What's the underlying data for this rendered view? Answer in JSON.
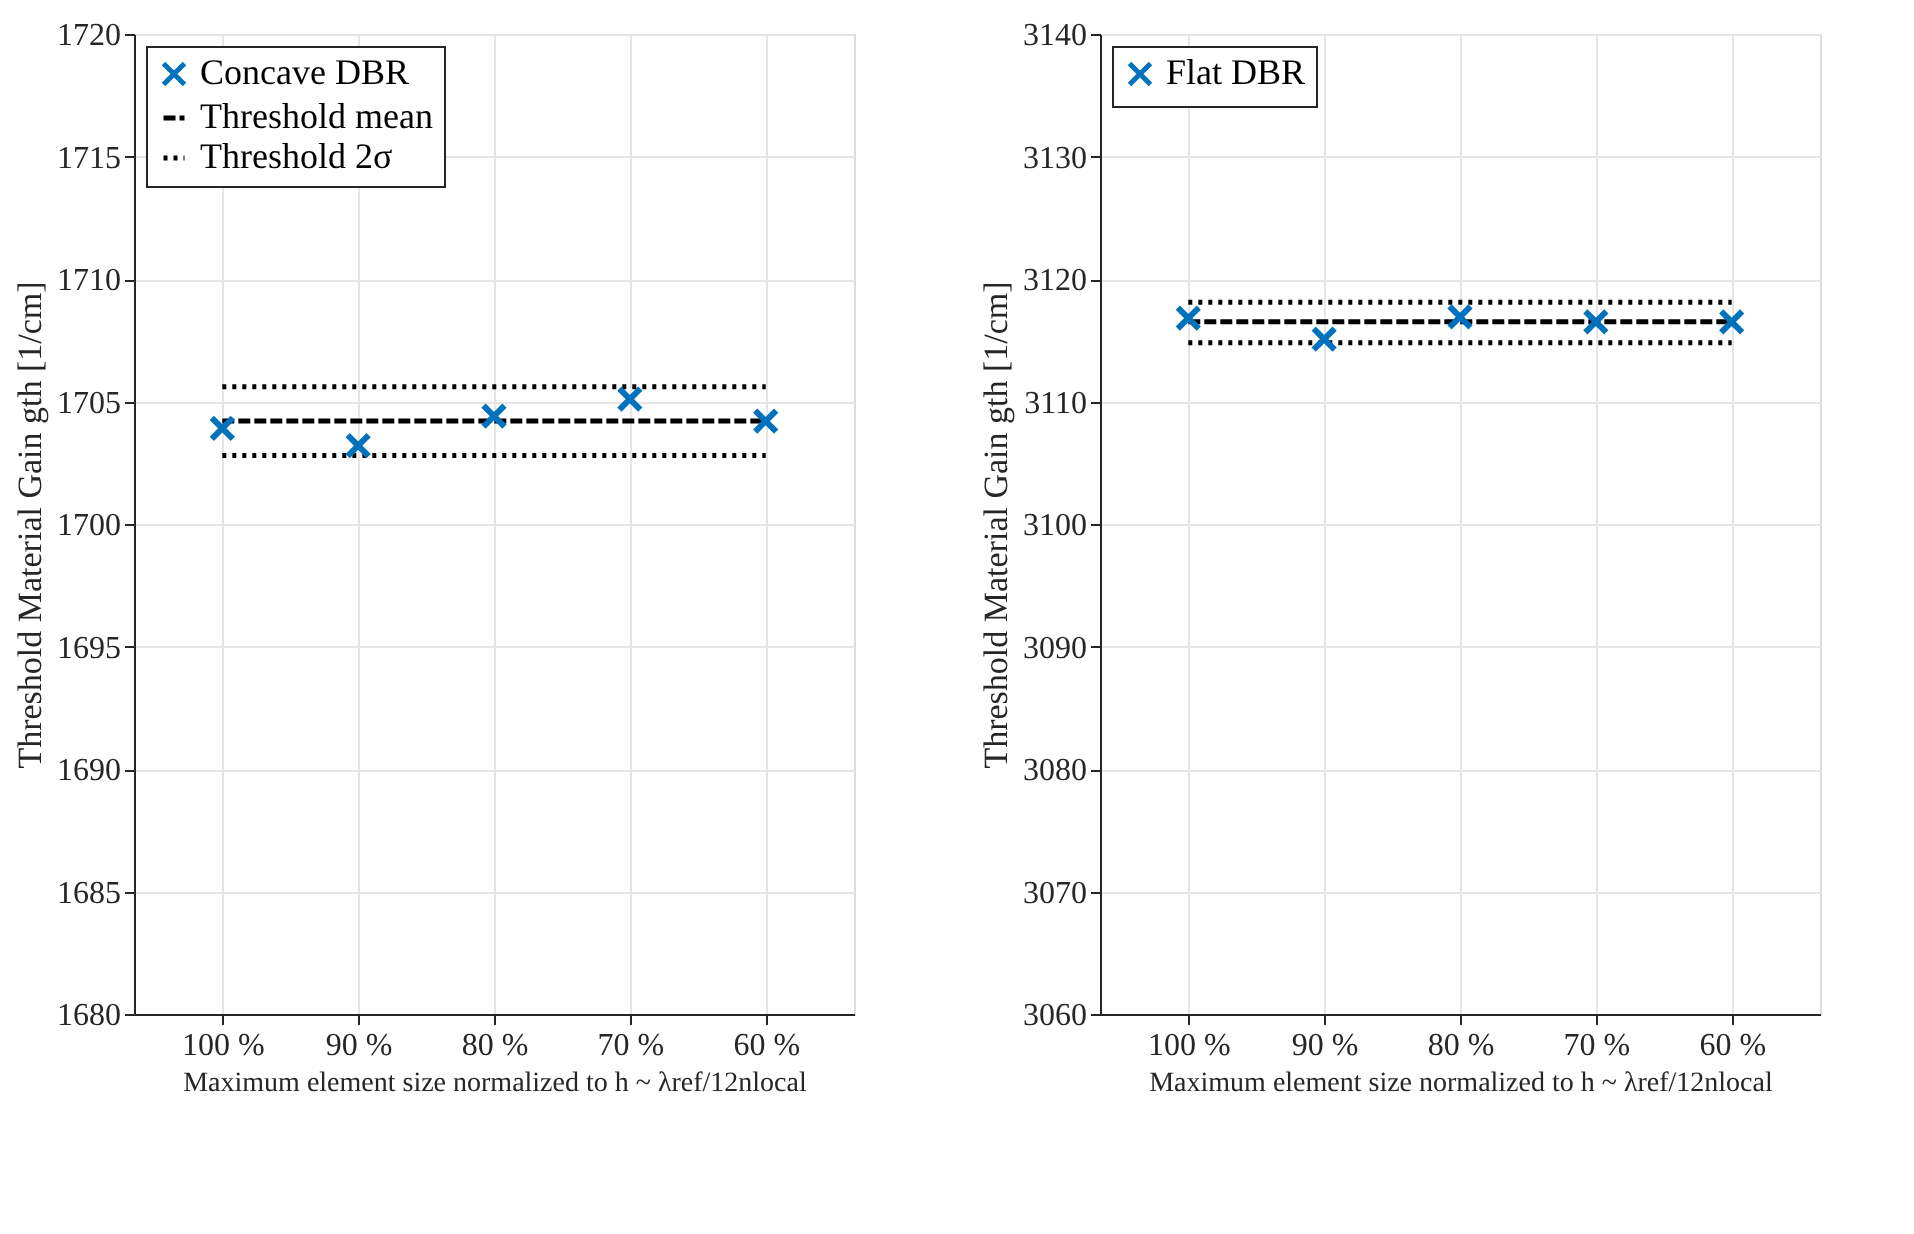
{
  "chart_data": [
    {
      "type": "scatter",
      "categories": [
        "100 %",
        "90 %",
        "80 %",
        "70 %",
        "60 %"
      ],
      "xlabel": "Maximum element size normalized\nto h ~ λref/12nlocal",
      "ylabel": "Threshold Material Gain gth [1/cm]",
      "ylim": [
        1680,
        1720
      ],
      "yticks": [
        1680,
        1685,
        1690,
        1695,
        1700,
        1705,
        1710,
        1715,
        1720
      ],
      "grid": true,
      "legend": "top left",
      "series": [
        {
          "name": "Concave DBR",
          "marker": "cross",
          "color": "#0072bd",
          "values": [
            1703.9,
            1703.2,
            1704.4,
            1705.1,
            1704.2
          ]
        },
        {
          "name": "Threshold mean",
          "type": "line",
          "line_style": "dashed",
          "marker": "none",
          "color": "#000000",
          "values": [
            1704.2,
            1704.2,
            1704.2,
            1704.2,
            1704.2
          ]
        },
        {
          "name": "Threshold 2σ",
          "type": "line",
          "line_style": "dotted",
          "marker": "none",
          "color": "#000000",
          "values": [
            1705.6,
            1705.6,
            1705.6,
            1705.6,
            1705.6
          ]
        },
        {
          "type": "line",
          "line_style": "dotted",
          "marker": "none",
          "color": "#000000",
          "values": [
            1702.8,
            1702.8,
            1702.8,
            1702.8,
            1702.8
          ]
        }
      ]
    },
    {
      "type": "scatter",
      "categories": [
        "100 %",
        "90 %",
        "80 %",
        "70 %",
        "60 %"
      ],
      "xlabel": "Maximum element size normalized\nto h ~ λref/12nlocal",
      "ylabel": "Threshold Material Gain gth [1/cm]",
      "ylim": [
        3060,
        3140
      ],
      "yticks": [
        3060,
        3070,
        3080,
        3090,
        3100,
        3110,
        3120,
        3130,
        3140
      ],
      "grid": true,
      "legend": "top left",
      "series": [
        {
          "name": "Flat DBR",
          "marker": "cross",
          "color": "#0072bd",
          "values": [
            3116.8,
            3115.1,
            3116.9,
            3116.5,
            3116.5
          ]
        },
        {
          "type": "line",
          "line_style": "dashed",
          "marker": "none",
          "color": "#000000",
          "values": [
            3116.5,
            3116.5,
            3116.5,
            3116.5,
            3116.5
          ]
        },
        {
          "type": "line",
          "line_style": "dotted",
          "marker": "none",
          "color": "#000000",
          "values": [
            3118.1,
            3118.1,
            3118.1,
            3118.1,
            3118.1
          ]
        },
        {
          "type": "line",
          "line_style": "dotted",
          "marker": "none",
          "color": "#000000",
          "values": [
            3114.8,
            3114.8,
            3114.8,
            3114.8,
            3114.8
          ]
        }
      ]
    }
  ]
}
